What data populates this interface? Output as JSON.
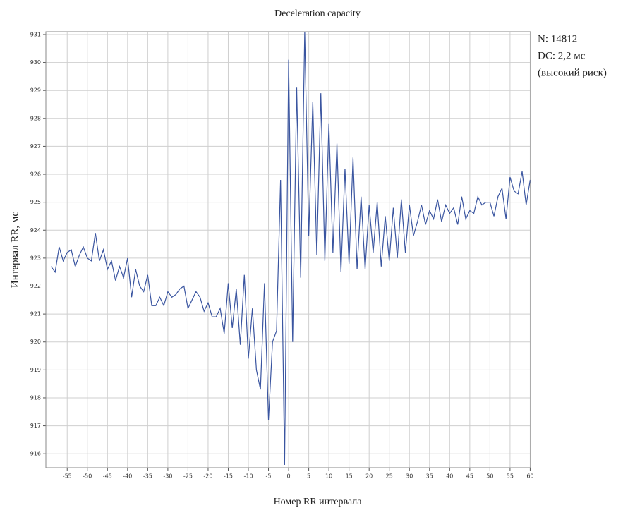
{
  "chart_data": {
    "type": "line",
    "title": "Deceleration capacity",
    "xlabel": "Номер RR интервала",
    "ylabel": "Интервал RR, мс",
    "annotations": [
      "N: 14812",
      "DC: 2,2 мс",
      "(высокий риск)"
    ],
    "x": [
      -59,
      -58,
      -57,
      -56,
      -55,
      -54,
      -53,
      -52,
      -51,
      -50,
      -49,
      -48,
      -47,
      -46,
      -45,
      -44,
      -43,
      -42,
      -41,
      -40,
      -39,
      -38,
      -37,
      -36,
      -35,
      -34,
      -33,
      -32,
      -31,
      -30,
      -29,
      -28,
      -27,
      -26,
      -25,
      -24,
      -23,
      -22,
      -21,
      -20,
      -19,
      -18,
      -17,
      -16,
      -15,
      -14,
      -13,
      -12,
      -11,
      -10,
      -9,
      -8,
      -7,
      -6,
      -5,
      -4,
      -3,
      -2,
      -1,
      0,
      1,
      2,
      3,
      4,
      5,
      6,
      7,
      8,
      9,
      10,
      11,
      12,
      13,
      14,
      15,
      16,
      17,
      18,
      19,
      20,
      21,
      22,
      23,
      24,
      25,
      26,
      27,
      28,
      29,
      30,
      31,
      32,
      33,
      34,
      35,
      36,
      37,
      38,
      39,
      40,
      41,
      42,
      43,
      44,
      45,
      46,
      47,
      48,
      49,
      50,
      51,
      52,
      53,
      54,
      55,
      56,
      57,
      58,
      59,
      60
    ],
    "series": [
      {
        "color": "#3a55a0",
        "values": [
          922.7,
          922.5,
          923.4,
          922.9,
          923.2,
          923.3,
          922.7,
          923.1,
          923.4,
          923.0,
          922.9,
          923.9,
          922.9,
          923.3,
          922.6,
          922.9,
          922.2,
          922.7,
          922.3,
          923.0,
          921.6,
          922.6,
          922.0,
          921.8,
          922.4,
          921.3,
          921.3,
          921.6,
          921.3,
          921.8,
          921.6,
          921.7,
          921.9,
          922.0,
          921.2,
          921.5,
          921.8,
          921.6,
          921.1,
          921.4,
          920.9,
          920.9,
          921.2,
          920.3,
          922.1,
          920.5,
          921.9,
          919.9,
          922.4,
          919.4,
          921.2,
          919.0,
          918.3,
          922.1,
          917.2,
          920.0,
          920.4,
          925.8,
          915.6,
          930.1,
          920.0,
          929.1,
          922.3,
          931.1,
          923.8,
          928.6,
          923.1,
          928.9,
          922.9,
          927.8,
          923.2,
          927.1,
          922.5,
          926.2,
          922.8,
          926.6,
          922.6,
          925.2,
          922.6,
          924.9,
          923.2,
          925.0,
          922.7,
          924.5,
          922.9,
          924.8,
          923.0,
          925.1,
          923.2,
          924.9,
          923.8,
          924.3,
          924.9,
          924.2,
          924.7,
          924.4,
          925.1,
          924.3,
          924.9,
          924.6,
          924.8,
          924.2,
          925.2,
          924.4,
          924.7,
          924.6,
          925.2,
          924.9,
          925.0,
          925.0,
          924.5,
          925.2,
          925.5,
          924.4,
          925.9,
          925.4,
          925.3,
          926.1,
          924.9,
          925.8
        ]
      }
    ],
    "xlim": [
      -60.3,
      60.1
    ],
    "ylim": [
      915.5,
      931.1
    ],
    "xticks": [
      -55,
      -50,
      -45,
      -40,
      -35,
      -30,
      -25,
      -20,
      -15,
      -10,
      -5,
      0,
      5,
      10,
      15,
      20,
      25,
      30,
      35,
      40,
      45,
      50,
      55,
      60
    ],
    "yticks": [
      916,
      917,
      918,
      919,
      920,
      921,
      922,
      923,
      924,
      925,
      926,
      927,
      928,
      929,
      930,
      931
    ],
    "grid": true
  }
}
